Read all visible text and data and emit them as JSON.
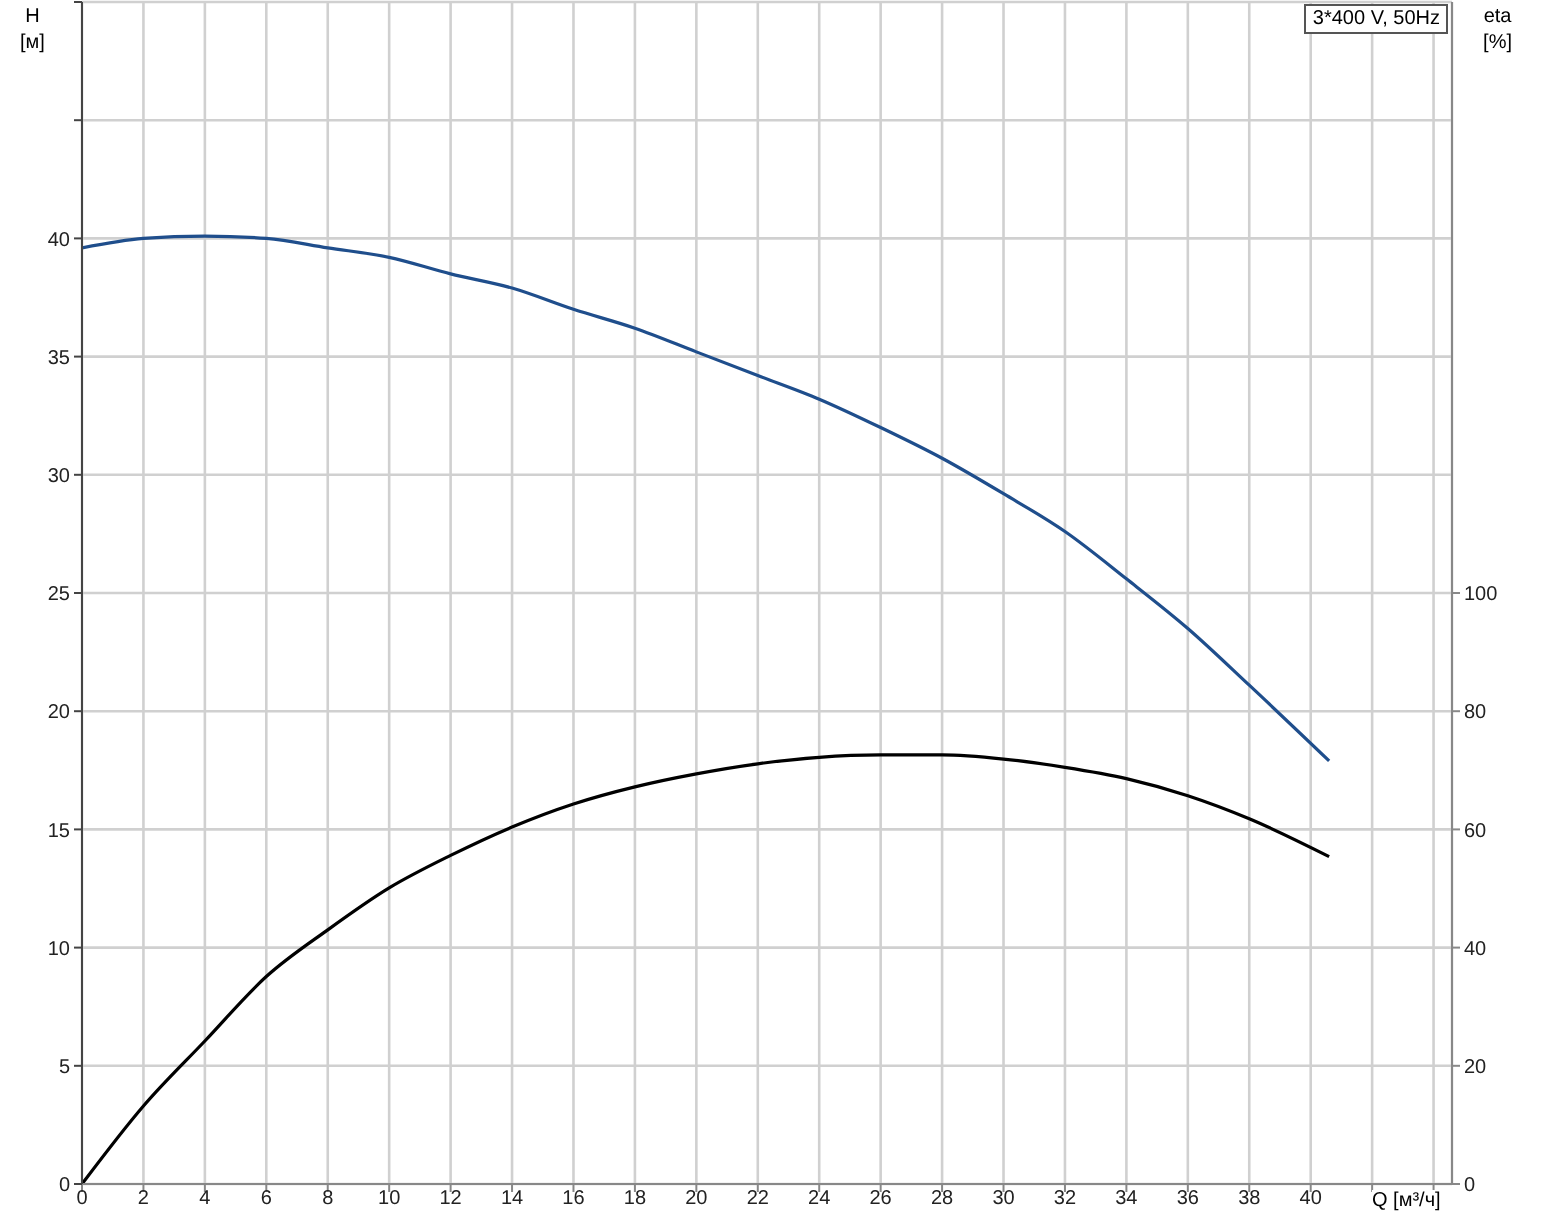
{
  "chart_data": {
    "type": "line",
    "xlabel": "Q [м³/ч]",
    "ylabel": "H [м]",
    "y2label": "eta [%]",
    "annotations": [
      "3*400 V, 50Hz"
    ],
    "x": [
      0,
      2,
      4,
      6,
      8,
      10,
      12,
      14,
      16,
      18,
      20,
      22,
      24,
      26,
      28,
      30,
      32,
      34,
      36,
      38,
      40.6
    ],
    "series": [
      {
        "color": "#1f4e8c",
        "values": [
          39.6,
          40.0,
          40.1,
          40.0,
          39.6,
          39.2,
          38.5,
          37.9,
          37.0,
          36.2,
          35.2,
          34.2,
          33.2,
          32.0,
          30.7,
          29.2,
          27.6,
          25.6,
          23.5,
          21.1,
          17.9
        ]
      },
      {
        "color": "#000000",
        "axis": "y2",
        "values": [
          0,
          13.2,
          24.2,
          35.1,
          43.0,
          50.1,
          55.6,
          60.4,
          64.3,
          67.2,
          69.4,
          71.1,
          72.2,
          72.6,
          72.6,
          71.9,
          70.5,
          68.6,
          65.7,
          61.8,
          55.4
        ]
      }
    ],
    "xlim": [
      0,
      44.6
    ],
    "xticks": [
      0,
      2,
      4,
      6,
      8,
      10,
      12,
      14,
      16,
      18,
      20,
      22,
      24,
      26,
      28,
      30,
      32,
      34,
      36,
      38,
      40,
      {
        "value": 42,
        "label": null
      },
      {
        "value": 44,
        "label": null
      }
    ],
    "ylim": [
      0,
      50
    ],
    "yticks": [
      0,
      5,
      10,
      15,
      20,
      25,
      30,
      35,
      40,
      {
        "value": 45,
        "label": null
      },
      {
        "value": 50,
        "label": null
      }
    ],
    "y2lim": [
      0,
      200
    ],
    "y2ticks": [
      0,
      20,
      40,
      60,
      80,
      100
    ],
    "grid": true,
    "legend": false,
    "marker": "none",
    "line_style": "solid"
  }
}
